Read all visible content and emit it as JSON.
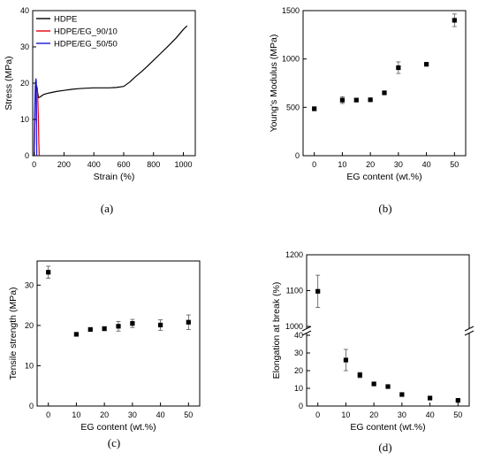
{
  "chart_data": [
    {
      "panel": "(a)",
      "type": "line",
      "xlabel": "Strain (%)",
      "ylabel": "Stress (MPa)",
      "xlim": [
        -10,
        1080
      ],
      "ylim": [
        0,
        40
      ],
      "xticks": [
        "0",
        "200",
        "400",
        "600",
        "800",
        "1000"
      ],
      "yticks": [
        "0",
        "10",
        "20",
        "30",
        "40"
      ],
      "legend_position": "top-left",
      "grid": false,
      "series": [
        {
          "name": "HDPE",
          "color": "#000000",
          "x": [
            0,
            4,
            8,
            12,
            16,
            20,
            24,
            30,
            40,
            60,
            80,
            100,
            150,
            200,
            250,
            300,
            350,
            400,
            450,
            500,
            550,
            600,
            640,
            680,
            720,
            760,
            800,
            850,
            900,
            950,
            1000,
            1025
          ],
          "y": [
            0,
            8,
            15,
            18.5,
            19.3,
            18.5,
            17.2,
            16.0,
            16.2,
            16.8,
            17.1,
            17.3,
            17.7,
            18.0,
            18.3,
            18.5,
            18.6,
            18.7,
            18.7,
            18.7,
            18.8,
            19.1,
            20.3,
            21.8,
            23.2,
            24.7,
            26.3,
            28.3,
            30.3,
            32.4,
            34.8,
            35.8
          ]
        },
        {
          "name": "HDPE/EG_90/10",
          "color": "#e8000b",
          "x": [
            0,
            4,
            8,
            12,
            16,
            20,
            24,
            28,
            31,
            34
          ],
          "y": [
            0,
            8,
            14,
            17.5,
            18.3,
            18,
            16.5,
            11,
            4,
            0
          ]
        },
        {
          "name": "HDPE/EG_50/50",
          "color": "#1a1ad8",
          "x": [
            0,
            2,
            4,
            6,
            8,
            10,
            12,
            14,
            16,
            17
          ],
          "y": [
            0,
            7,
            13,
            17,
            19.5,
            20.8,
            21.2,
            20.5,
            12,
            0
          ]
        }
      ]
    },
    {
      "panel": "(b)",
      "type": "scatter",
      "xlabel": "EG content (wt.%)",
      "ylabel": "Young's Modulus (MPa)",
      "xlim": [
        -4,
        54
      ],
      "ylim": [
        0,
        1500
      ],
      "xticks": [
        "0",
        "10",
        "20",
        "30",
        "40",
        "50"
      ],
      "yticks": [
        "0",
        "500",
        "1000",
        "1500"
      ],
      "grid": false,
      "points": [
        {
          "x": 0,
          "y": 485,
          "err": 20
        },
        {
          "x": 10,
          "y": 575,
          "err": 35
        },
        {
          "x": 15,
          "y": 575,
          "err": 15
        },
        {
          "x": 20,
          "y": 578,
          "err": 12
        },
        {
          "x": 25,
          "y": 650,
          "err": 15
        },
        {
          "x": 30,
          "y": 910,
          "err": 60
        },
        {
          "x": 40,
          "y": 945,
          "err": 15
        },
        {
          "x": 50,
          "y": 1400,
          "err": 65
        }
      ]
    },
    {
      "panel": "(c)",
      "type": "scatter",
      "xlabel": "EG content (wt.%)",
      "ylabel": "Tensile strength (MPa)",
      "xlim": [
        -4,
        54
      ],
      "ylim": [
        0,
        36
      ],
      "xticks": [
        "0",
        "10",
        "20",
        "30",
        "40",
        "50"
      ],
      "yticks": [
        "0",
        "10",
        "20",
        "30"
      ],
      "grid": false,
      "points": [
        {
          "x": 0,
          "y": 33.2,
          "err": 1.5
        },
        {
          "x": 10,
          "y": 17.8,
          "err": 0.3
        },
        {
          "x": 15,
          "y": 19.0,
          "err": 0.3
        },
        {
          "x": 20,
          "y": 19.2,
          "err": 0.5
        },
        {
          "x": 25,
          "y": 19.8,
          "err": 1.2
        },
        {
          "x": 30,
          "y": 20.5,
          "err": 1.0
        },
        {
          "x": 40,
          "y": 20.1,
          "err": 1.3
        },
        {
          "x": 50,
          "y": 20.8,
          "err": 1.8
        }
      ]
    },
    {
      "panel": "(d)",
      "type": "scatter",
      "xlabel": "EG content (wt.%)",
      "ylabel": "Elongation at break (%)",
      "xlim": [
        -4,
        54
      ],
      "broken_axis": true,
      "ylim_upper": [
        1000,
        1200
      ],
      "ylim_lower": [
        0,
        40
      ],
      "xticks": [
        "0",
        "10",
        "20",
        "30",
        "40",
        "50"
      ],
      "yticks_upper": [
        "1000",
        "1100",
        "1200"
      ],
      "yticks_lower": [
        "0",
        "10",
        "20",
        "30",
        "40"
      ],
      "grid": false,
      "points": [
        {
          "x": 0,
          "y": 1098,
          "err": 45
        },
        {
          "x": 10,
          "y": 26,
          "err": 6
        },
        {
          "x": 15,
          "y": 17.5,
          "err": 1.5
        },
        {
          "x": 20,
          "y": 12.5,
          "err": 0.7
        },
        {
          "x": 25,
          "y": 11,
          "err": 1
        },
        {
          "x": 30,
          "y": 6.5,
          "err": 0.5
        },
        {
          "x": 40,
          "y": 4.5,
          "err": 0.3
        },
        {
          "x": 50,
          "y": 3.2,
          "err": 0.3
        }
      ]
    }
  ]
}
